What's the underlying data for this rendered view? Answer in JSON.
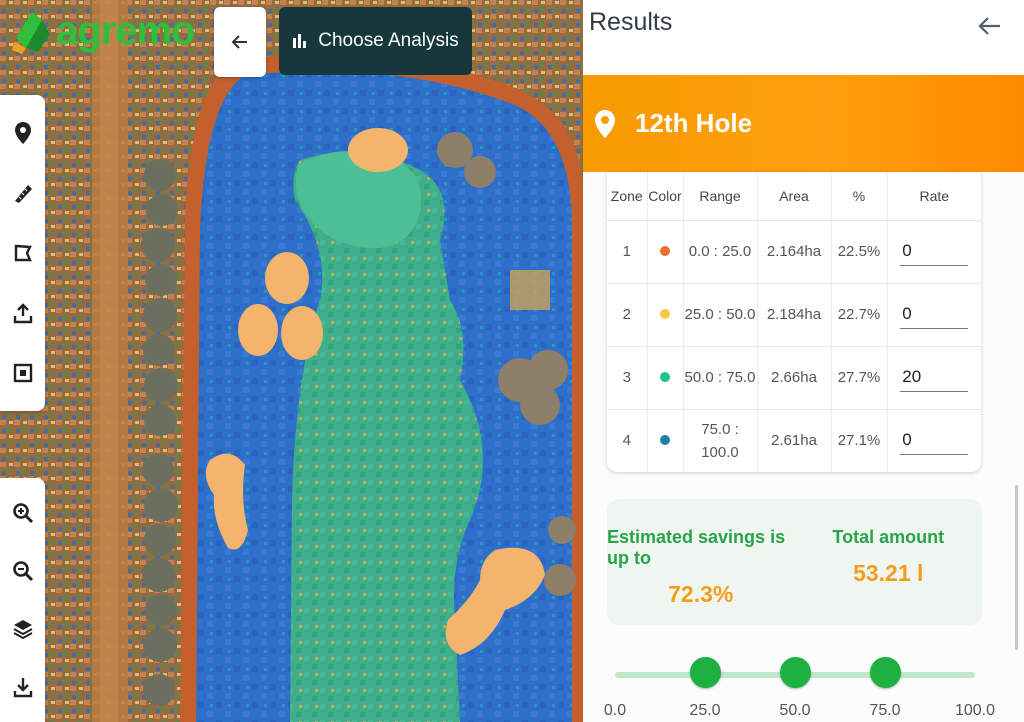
{
  "brand": {
    "name": "agremo"
  },
  "map_header": {
    "choose_analysis_label": "Choose Analysis"
  },
  "map_tools": {
    "top": [
      "location-pin-icon",
      "ruler-icon",
      "polygon-icon",
      "upload-icon",
      "layout-icon"
    ],
    "bottom": [
      "zoom-in-icon",
      "zoom-out-icon",
      "layers-icon",
      "download-icon"
    ]
  },
  "panel": {
    "title": "Results",
    "field_name": "12th Hole",
    "table": {
      "headers": [
        "Zone",
        "Color",
        "Range",
        "Area",
        "%",
        "Rate"
      ],
      "rows": [
        {
          "zone": "1",
          "color": "#e8702a",
          "range": "0.0 : 25.0",
          "area": "2.164ha",
          "percent": "22.5%",
          "rate": "0"
        },
        {
          "zone": "2",
          "color": "#f7c945",
          "range": "25.0 : 50.0",
          "area": "2.184ha",
          "percent": "22.7%",
          "rate": "0"
        },
        {
          "zone": "3",
          "color": "#1fc48a",
          "range": "50.0 : 75.0",
          "area": "2.66ha",
          "percent": "27.7%",
          "rate": "20"
        },
        {
          "zone": "4",
          "color": "#1a84a6",
          "range": "75.0 : 100.0",
          "area": "2.61ha",
          "percent": "27.1%",
          "rate": "0"
        }
      ]
    },
    "savings": {
      "label": "Estimated savings is up to",
      "value": "72.3%",
      "total_label": "Total amount",
      "total_value": "53.21 l"
    },
    "slider": {
      "min": 0,
      "max": 100,
      "handles": [
        25,
        50,
        75
      ],
      "ticks": [
        "0.0",
        "25.0",
        "50.0",
        "75.0",
        "100.0"
      ]
    }
  },
  "colors": {
    "accent_orange": "#ff9a00",
    "accent_green": "#1db141",
    "dark_button": "#16383d"
  }
}
